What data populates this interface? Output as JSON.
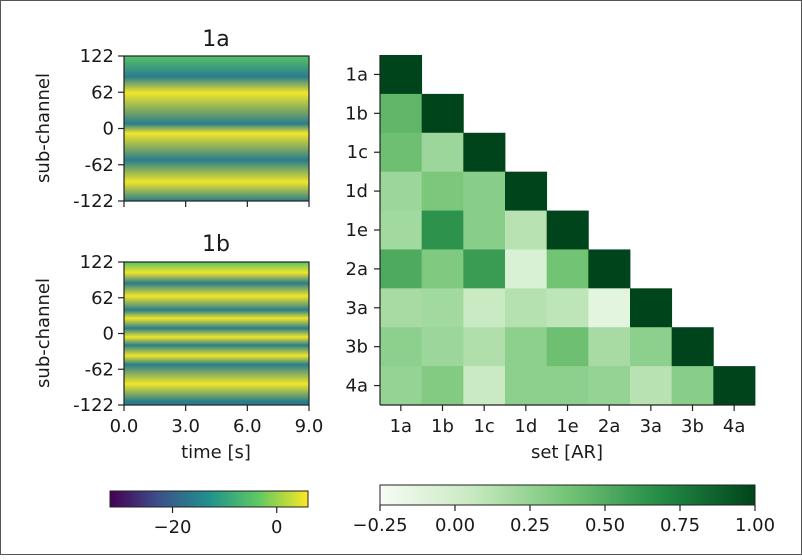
{
  "chart_data": [
    {
      "type": "heatmap",
      "title": "1a",
      "ylabel": "sub-channel",
      "xlabel": "",
      "yticks": [
        "122",
        "62",
        "0",
        "-62",
        "-122"
      ],
      "ylim": [
        -122,
        122
      ],
      "xlim": [
        0,
        9
      ],
      "colormap": "viridis",
      "stripe_dark_positions": [
        87,
        8,
        -53,
        -122
      ],
      "stripe_bright_positions": [
        60,
        -8,
        -90
      ]
    },
    {
      "type": "heatmap",
      "title": "1b",
      "ylabel": "sub-channel",
      "xlabel": "time [s]",
      "yticks": [
        "122",
        "62",
        "0",
        "-62",
        "-122"
      ],
      "xticks": [
        "0.0",
        "3.0",
        "6.0",
        "9.0"
      ],
      "ylim": [
        -122,
        122
      ],
      "xlim": [
        0,
        9
      ],
      "colormap": "viridis",
      "stripe_dark_positions": [
        86,
        40,
        9,
        -20,
        -53,
        -116
      ],
      "stripe_bright_positions": [
        104,
        64,
        26,
        -6,
        -38,
        -86
      ]
    },
    {
      "type": "heatmap",
      "title": "",
      "xlabel": "set [AR]",
      "ylabel": "",
      "categories": [
        "1a",
        "1b",
        "1c",
        "1d",
        "1e",
        "2a",
        "3a",
        "3b",
        "4a"
      ],
      "colormap": "greens",
      "vmin": -0.25,
      "vmax": 1.0,
      "values": [
        [
          1.0
        ],
        [
          0.45,
          1.0
        ],
        [
          0.4,
          0.22,
          1.0
        ],
        [
          0.22,
          0.35,
          0.3,
          1.0
        ],
        [
          0.2,
          0.65,
          0.3,
          0.12,
          1.0
        ],
        [
          0.52,
          0.33,
          0.6,
          -0.05,
          0.38,
          1.0
        ],
        [
          0.18,
          0.2,
          0.05,
          0.13,
          0.1,
          -0.12,
          1.0
        ],
        [
          0.28,
          0.22,
          0.15,
          0.28,
          0.4,
          0.18,
          0.28,
          1.0
        ],
        [
          0.25,
          0.32,
          0.05,
          0.28,
          0.28,
          0.25,
          0.12,
          0.3,
          1.0
        ]
      ]
    }
  ],
  "colorbars": [
    {
      "cmap": "viridis",
      "ticks": [
        "−20",
        "0"
      ],
      "tick_values": [
        -20,
        0
      ],
      "range": [
        -32,
        6
      ]
    },
    {
      "cmap": "greens",
      "ticks": [
        "−0.25",
        "0.00",
        "0.25",
        "0.50",
        "0.75",
        "1.00"
      ],
      "tick_values": [
        -0.25,
        0,
        0.25,
        0.5,
        0.75,
        1.0
      ],
      "range": [
        -0.25,
        1.0
      ]
    }
  ]
}
